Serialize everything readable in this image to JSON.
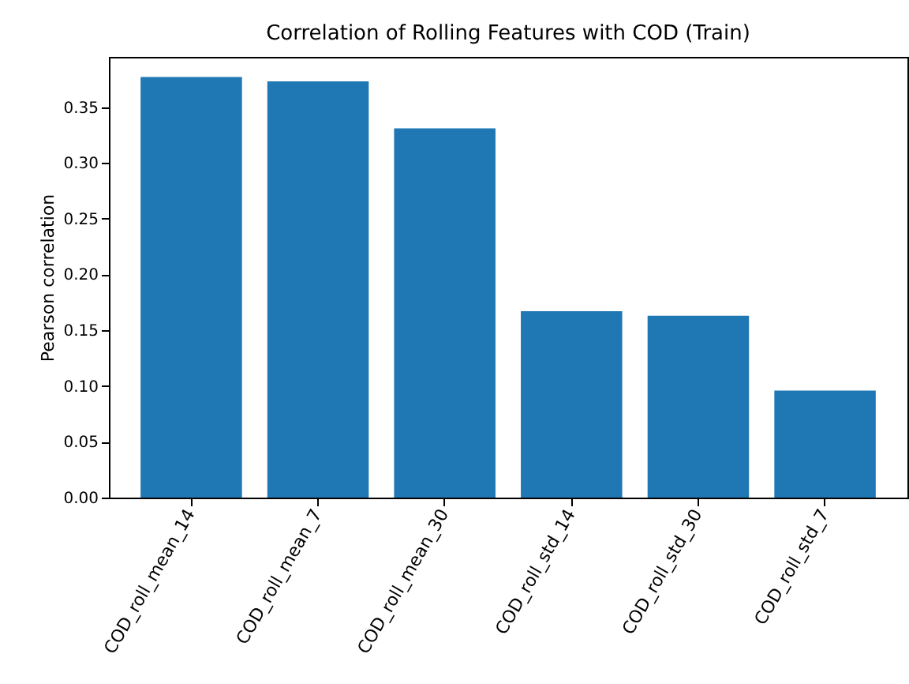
{
  "chart_data": {
    "type": "bar",
    "title": "Correlation of Rolling Features with COD (Train)",
    "ylabel": "Pearson correlation",
    "categories": [
      "COD_roll_mean_14",
      "COD_roll_mean_7",
      "COD_roll_mean_30",
      "COD_roll_std_14",
      "COD_roll_std_30",
      "COD_roll_std_7"
    ],
    "values": [
      0.377,
      0.373,
      0.331,
      0.167,
      0.163,
      0.096
    ],
    "color": "#1f77b4",
    "ylim": [
      0,
      0.395
    ],
    "yticks": [
      {
        "value": 0,
        "label": "0.00"
      },
      {
        "value": 0.05,
        "label": "0.05"
      },
      {
        "value": 0.1,
        "label": "0.10"
      },
      {
        "value": 0.15,
        "label": "0.15"
      },
      {
        "value": 0.2,
        "label": "0.20"
      },
      {
        "value": 0.25,
        "label": "0.25"
      },
      {
        "value": 0.3,
        "label": "0.30"
      },
      {
        "value": 0.35,
        "label": "0.35"
      }
    ],
    "grid": false
  }
}
